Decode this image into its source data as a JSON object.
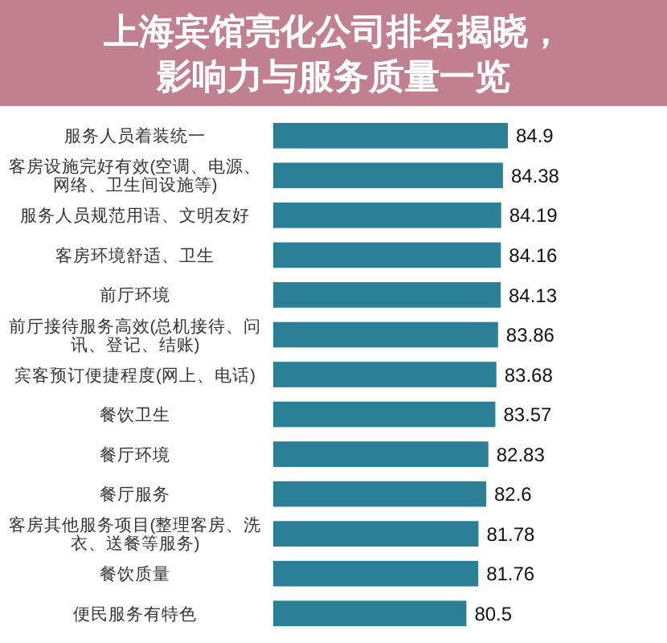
{
  "chart_data": {
    "type": "bar",
    "orientation": "horizontal",
    "title": "上海宾馆亮化公司排名揭晓，影响力与服务质量一览",
    "categories": [
      "服务人员着装统一",
      "客房设施完好有效(空调、电源、网络、卫生间设施等)",
      "服务人员规范用语、文明友好",
      "客房环境舒适、卫生",
      "前厅环境",
      "前厅接待服务高效(总机接待、问讯、登记、结账)",
      "宾客预订便捷程度(网上、电话)",
      "餐饮卫生",
      "餐厅环境",
      "餐厅服务",
      "客房其他服务项目(整理客房、洗衣、送餐等服务)",
      "餐饮质量",
      "便民服务有特色"
    ],
    "values": [
      84.9,
      84.38,
      84.19,
      84.16,
      84.13,
      83.86,
      83.68,
      83.57,
      82.83,
      82.6,
      81.78,
      81.76,
      80.5
    ],
    "color": "#2b7f97",
    "xlim": [
      60,
      84.9
    ],
    "data_labels": true
  }
}
